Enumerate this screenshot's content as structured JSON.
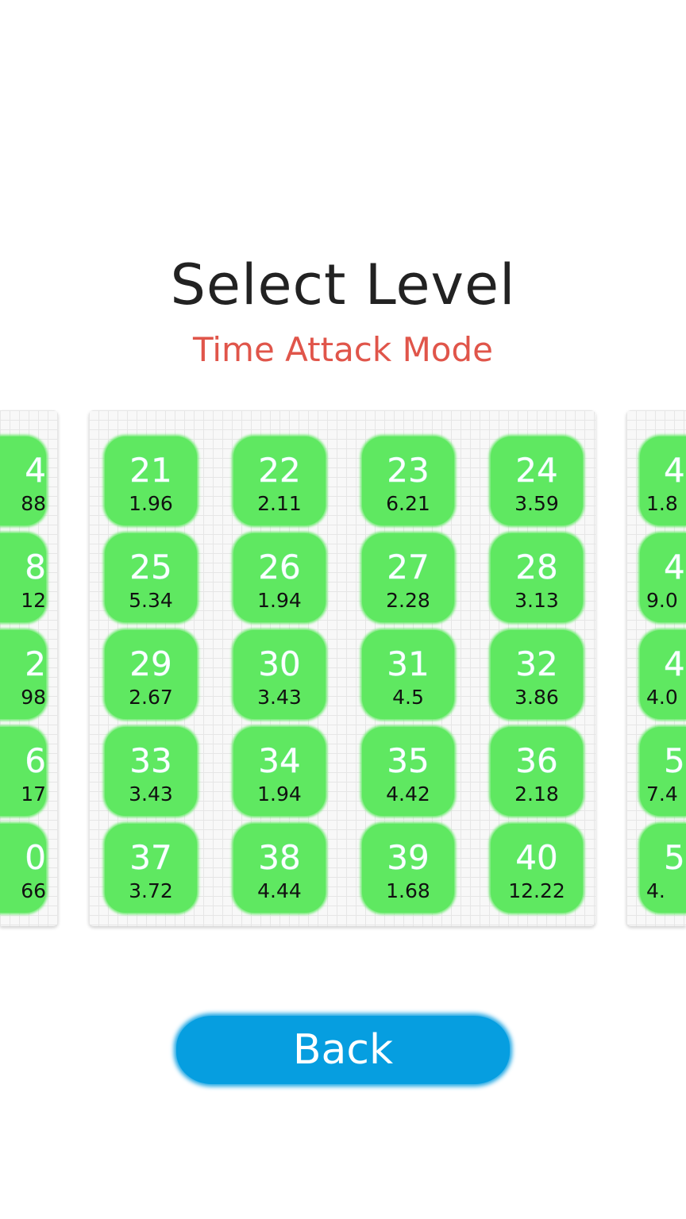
{
  "header": {
    "title": "Select Level",
    "subtitle": "Time Attack Mode"
  },
  "colors": {
    "tile": "#5fe861",
    "subtitle": "#e0554a",
    "back_button": "#069ee0"
  },
  "left_panel_partial": [
    {
      "level": "4",
      "time": "88"
    },
    {
      "level": "8",
      "time": "12"
    },
    {
      "level": "2",
      "time": "98"
    },
    {
      "level": "6",
      "time": "17"
    },
    {
      "level": "0",
      "time": "66"
    }
  ],
  "levels": [
    {
      "level": "21",
      "time": "1.96"
    },
    {
      "level": "22",
      "time": "2.11"
    },
    {
      "level": "23",
      "time": "6.21"
    },
    {
      "level": "24",
      "time": "3.59"
    },
    {
      "level": "25",
      "time": "5.34"
    },
    {
      "level": "26",
      "time": "1.94"
    },
    {
      "level": "27",
      "time": "2.28"
    },
    {
      "level": "28",
      "time": "3.13"
    },
    {
      "level": "29",
      "time": "2.67"
    },
    {
      "level": "30",
      "time": "3.43"
    },
    {
      "level": "31",
      "time": "4.5"
    },
    {
      "level": "32",
      "time": "3.86"
    },
    {
      "level": "33",
      "time": "3.43"
    },
    {
      "level": "34",
      "time": "1.94"
    },
    {
      "level": "35",
      "time": "4.42"
    },
    {
      "level": "36",
      "time": "2.18"
    },
    {
      "level": "37",
      "time": "3.72"
    },
    {
      "level": "38",
      "time": "4.44"
    },
    {
      "level": "39",
      "time": "1.68"
    },
    {
      "level": "40",
      "time": "12.22"
    }
  ],
  "right_panel_partial": [
    {
      "level": "4",
      "time": "1.8"
    },
    {
      "level": "4",
      "time": "9.0"
    },
    {
      "level": "4",
      "time": "4.0"
    },
    {
      "level": "5",
      "time": "7.4"
    },
    {
      "level": "5",
      "time": "4."
    }
  ],
  "back_button": {
    "label": "Back"
  }
}
